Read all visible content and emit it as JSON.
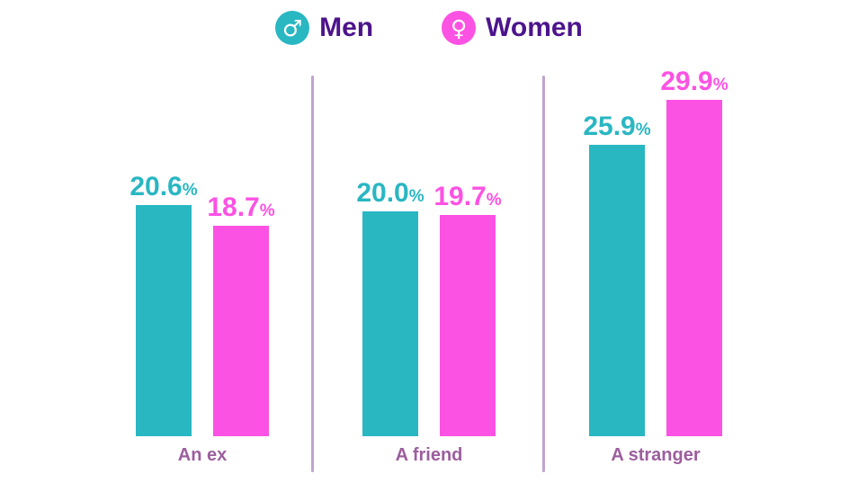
{
  "chart_data": {
    "type": "bar",
    "title": "",
    "categories": [
      "An ex",
      "A friend",
      "A stranger"
    ],
    "series": [
      {
        "name": "Men",
        "values": [
          20.6,
          20.0,
          25.9
        ],
        "color": "#29b7c2"
      },
      {
        "name": "Women",
        "values": [
          18.7,
          19.7,
          29.9
        ],
        "color": "#fc52e3"
      }
    ],
    "value_suffix": "%",
    "value_label_decimals": 1,
    "ylim": [
      0,
      30
    ],
    "grid": false,
    "legend_position": "top"
  },
  "legend": {
    "items": [
      {
        "label": "Men",
        "symbol": "♂",
        "icon": "male-icon",
        "color": "#29b7c2"
      },
      {
        "label": "Women",
        "symbol": "♀",
        "icon": "female-icon",
        "color": "#fc52e3"
      }
    ]
  },
  "colors": {
    "men_bar": "#29b7c2",
    "women_bar": "#fc52e3",
    "legend_text": "#4c148c",
    "category_label": "#9c5e9e",
    "divider": "#c2a3cf",
    "background": "#ffffff"
  }
}
